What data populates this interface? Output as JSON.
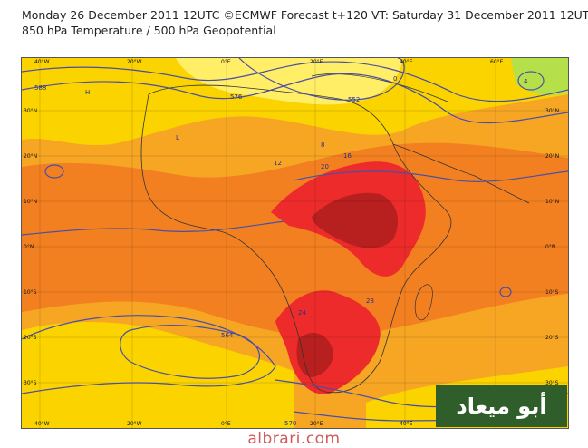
{
  "header": {
    "line1": "Monday 26 December 2011 12UTC ©ECMWF Forecast t+120 VT: Saturday 31 December 2011 12UTC",
    "line2": "850 hPa Temperature / 500 hPa Geopotential"
  },
  "axes": {
    "longitudes": [
      "40°W",
      "20°W",
      "0°E",
      "20°E",
      "40°E",
      "60°E"
    ],
    "latitudes": [
      "30°N",
      "20°N",
      "10°N",
      "0°N",
      "10°S",
      "20°S",
      "30°S"
    ]
  },
  "contour_labels": [
    "588",
    "0",
    "576",
    "8",
    "12",
    "16",
    "20",
    "24",
    "28",
    "4",
    "552",
    "564",
    "570",
    "H",
    "L"
  ],
  "watermark": {
    "arabic_text": "أبو ميعاد",
    "url": "albrari.com"
  },
  "colors": {
    "background_warm": "#f6a623",
    "temp_orange": "#f38020",
    "temp_yellow": "#fbd400",
    "temp_light_yellow": "#ffee66",
    "temp_red": "#ee2b2b",
    "temp_dark_red": "#b81f1f",
    "temp_cool": "#b6e04a",
    "contour": "#4a4fa6",
    "coast": "#333333",
    "watermark_bg": "#2f5e2a",
    "url_color": "#d05a5a"
  }
}
